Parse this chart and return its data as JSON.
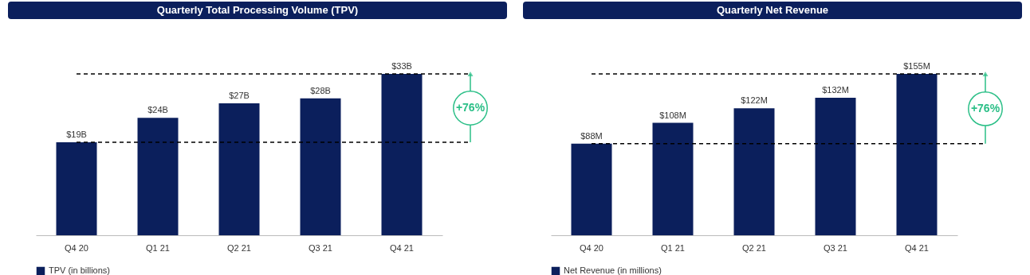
{
  "chart_data": [
    {
      "type": "bar",
      "title": "Quarterly Total Processing Volume (TPV)",
      "categories": [
        "Q4 20",
        "Q1 21",
        "Q2 21",
        "Q3 21",
        "Q4 21"
      ],
      "series": [
        {
          "name": "TPV (in billions)",
          "color": "#0b1f5c",
          "values": [
            19,
            24,
            27,
            28,
            33
          ],
          "value_labels": [
            "$19B",
            "$24B",
            "$27B",
            "$28B",
            "$33B"
          ]
        }
      ],
      "tick_labels": "x",
      "legend": "bottom",
      "ref_lines": [
        {
          "axis": "y",
          "value": 19,
          "line_style": "dashed",
          "color": "#000000"
        },
        {
          "axis": "y",
          "value": 33,
          "line_style": "dashed",
          "color": "#000000"
        }
      ],
      "annotations": [
        "+76%"
      ]
    },
    {
      "type": "bar",
      "title": "Quarterly Net Revenue",
      "categories": [
        "Q4 20",
        "Q1 21",
        "Q2 21",
        "Q3 21",
        "Q4 21"
      ],
      "series": [
        {
          "name": "Net Revenue (in millions)",
          "color": "#0b1f5c",
          "values": [
            88,
            108,
            122,
            132,
            155
          ],
          "value_labels": [
            "$88M",
            "$108M",
            "$122M",
            "$132M",
            "$155M"
          ]
        }
      ],
      "tick_labels": "x",
      "legend": "bottom",
      "ref_lines": [
        {
          "axis": "y",
          "value": 88,
          "line_style": "dashed",
          "color": "#000000"
        },
        {
          "axis": "y",
          "value": 155,
          "line_style": "dashed",
          "color": "#000000"
        }
      ],
      "annotations": [
        "+76%"
      ]
    }
  ]
}
